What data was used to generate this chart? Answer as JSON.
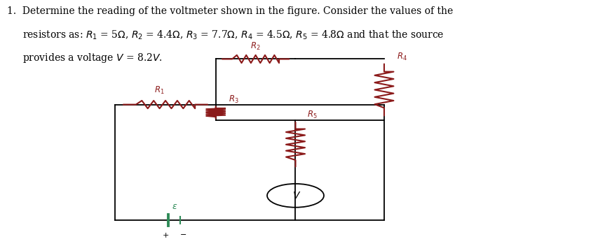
{
  "bg_color": "#ffffff",
  "line_color": "#000000",
  "resistor_color": "#8B1A1A",
  "battery_color": "#2e8b57",
  "font_size_text": 10.0,
  "text_color": "#000000",
  "xl": 0.195,
  "xm1": 0.365,
  "xm2": 0.5,
  "xr": 0.65,
  "yt_outer": 0.575,
  "yt_inner": 0.76,
  "ym": 0.51,
  "yv": 0.295,
  "yb": 0.105,
  "res_amp": 0.016,
  "res_n": 5,
  "res_lw": 1.5
}
